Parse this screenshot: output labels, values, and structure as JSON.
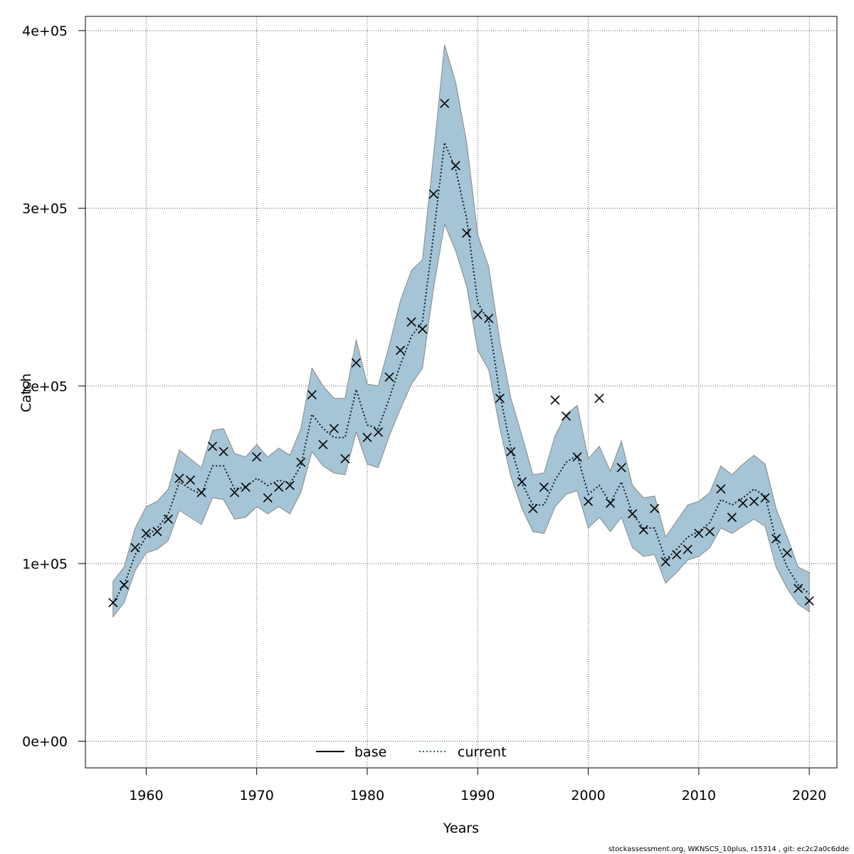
{
  "chart_data": {
    "type": "line",
    "title": "",
    "xlabel": "Years",
    "ylabel": "Catch",
    "xlim": [
      1954.5,
      2022.5
    ],
    "ylim": [
      -15000,
      408000
    ],
    "x_ticks": [
      1960,
      1970,
      1980,
      1990,
      2000,
      2010,
      2020
    ],
    "x_tick_labels": [
      "1960",
      "1970",
      "1980",
      "1990",
      "2000",
      "2010",
      "2020"
    ],
    "y_ticks": [
      0,
      100000,
      200000,
      300000,
      400000
    ],
    "y_tick_labels": [
      "0e+00",
      "1e+05",
      "2e+05",
      "3e+05",
      "4e+05"
    ],
    "grid": true,
    "legend_position": "bottom-center",
    "legend": [
      {
        "label": "base",
        "style": "solid",
        "color": "#000000"
      },
      {
        "label": "current",
        "style": "dotted",
        "color": "#1f5f8b"
      }
    ],
    "colors": {
      "band_fill": "#a5c4d5",
      "band_stroke": "#888888",
      "current_line": "#1f5f8b",
      "observed_marker": "#000000"
    },
    "years": [
      1957,
      1958,
      1959,
      1960,
      1961,
      1962,
      1963,
      1964,
      1965,
      1966,
      1967,
      1968,
      1969,
      1970,
      1971,
      1972,
      1973,
      1974,
      1975,
      1976,
      1977,
      1978,
      1979,
      1980,
      1981,
      1982,
      1983,
      1984,
      1985,
      1986,
      1987,
      1988,
      1989,
      1990,
      1991,
      1992,
      1993,
      1994,
      1995,
      1996,
      1997,
      1998,
      1999,
      2000,
      2001,
      2002,
      2003,
      2004,
      2005,
      2006,
      2007,
      2008,
      2009,
      2010,
      2011,
      2012,
      2013,
      2014,
      2015,
      2016,
      2017,
      2018,
      2019,
      2020
    ],
    "series": [
      {
        "name": "current",
        "role": "estimate",
        "values": [
          78000,
          88000,
          105000,
          115000,
          120000,
          128000,
          146000,
          142000,
          139000,
          155000,
          155000,
          142000,
          143000,
          148000,
          144000,
          147000,
          145000,
          155000,
          184000,
          176000,
          171000,
          171000,
          198000,
          178000,
          176000,
          193000,
          212000,
          228000,
          236000,
          285000,
          337000,
          322000,
          294000,
          247000,
          236000,
          195000,
          165000,
          145000,
          133000,
          133000,
          147000,
          157000,
          161000,
          139000,
          144000,
          134000,
          146000,
          128000,
          120000,
          120000,
          102000,
          108000,
          115000,
          118000,
          123000,
          136000,
          133000,
          137000,
          142000,
          138000,
          113000,
          98000,
          88000,
          83000
        ]
      },
      {
        "name": "current-upper",
        "role": "confidence-upper",
        "values": [
          90000,
          98000,
          120000,
          132000,
          135000,
          142000,
          164000,
          159000,
          154000,
          175000,
          176000,
          162000,
          160000,
          167000,
          160000,
          165000,
          161000,
          176000,
          210000,
          200000,
          193000,
          193000,
          226000,
          201000,
          200000,
          223000,
          248000,
          265000,
          271000,
          330000,
          392000,
          371000,
          337000,
          285000,
          267000,
          225000,
          193000,
          172000,
          150000,
          151000,
          172000,
          184000,
          189000,
          159000,
          166000,
          152000,
          169000,
          144000,
          137000,
          138000,
          115000,
          124000,
          133000,
          135000,
          140000,
          155000,
          150000,
          156000,
          161000,
          156000,
          131000,
          115000,
          98000,
          95000
        ]
      },
      {
        "name": "current-lower",
        "role": "confidence-lower",
        "values": [
          70000,
          78000,
          96000,
          106000,
          108000,
          113000,
          130000,
          126000,
          122000,
          137000,
          136000,
          125000,
          126000,
          132000,
          128000,
          132000,
          128000,
          140000,
          163000,
          155000,
          151000,
          150000,
          174000,
          156000,
          154000,
          172000,
          187000,
          201000,
          210000,
          255000,
          291000,
          276000,
          256000,
          220000,
          209000,
          176000,
          149000,
          131000,
          118000,
          117000,
          132000,
          139000,
          141000,
          120000,
          126000,
          118000,
          126000,
          109000,
          104000,
          105000,
          89000,
          95000,
          102000,
          104000,
          109000,
          120000,
          117000,
          121000,
          125000,
          121000,
          98000,
          86000,
          77000,
          73000
        ]
      },
      {
        "name": "observed",
        "role": "observed-points",
        "values": [
          78000,
          88000,
          109000,
          117000,
          118000,
          125000,
          148000,
          147000,
          140000,
          166000,
          163000,
          140000,
          143000,
          160000,
          137000,
          143000,
          144000,
          157000,
          195000,
          167000,
          176000,
          159000,
          213000,
          171000,
          174000,
          205000,
          220000,
          236000,
          232000,
          308000,
          359000,
          324000,
          286000,
          240000,
          238000,
          193000,
          163000,
          146000,
          131000,
          143000,
          192000,
          183000,
          160000,
          135000,
          193000,
          134000,
          154000,
          128000,
          119000,
          131000,
          101000,
          105000,
          108000,
          117000,
          118000,
          142000,
          126000,
          134000,
          135000,
          137000,
          114000,
          106000,
          86000,
          79000
        ]
      }
    ]
  },
  "footer": {
    "credit": "stockassessment.org, WKNSCS_10plus, r15314 , git: ec2c2a0c6dde"
  }
}
